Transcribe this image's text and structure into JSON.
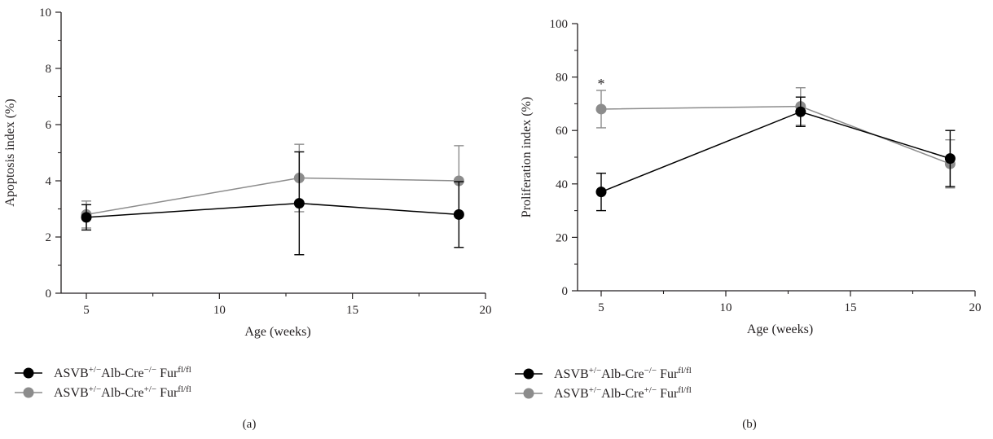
{
  "chart_data": [
    {
      "type": "line",
      "panel_label": "(a)",
      "xlabel": "Age (weeks)",
      "ylabel": "Apoptosis index (%)",
      "xlim": [
        4,
        20
      ],
      "ylim": [
        0,
        10
      ],
      "xticks": [
        5,
        10,
        15,
        20
      ],
      "yticks": [
        0,
        2,
        4,
        6,
        8,
        10
      ],
      "grid": false,
      "legend_position": "bottom-left",
      "series": [
        {
          "legend": {
            "base": "ASVB",
            "sup1": "+/−",
            "mid": "Alb-Cre",
            "sup2": "−/−",
            "fur": "Fur",
            "sup3": "fl/fl"
          },
          "color": "#000000",
          "x": [
            5,
            13,
            19
          ],
          "y": [
            2.7,
            3.2,
            2.8
          ],
          "err": [
            0.45,
            1.83,
            1.17
          ]
        },
        {
          "legend": {
            "base": "ASVB",
            "sup1": "+/−",
            "mid": "Alb-Cre",
            "sup2": "+/−",
            "fur": "Fur",
            "sup3": "fl/fl"
          },
          "color": "#8c8c8c",
          "x": [
            5,
            13,
            19
          ],
          "y": [
            2.8,
            4.1,
            4.0
          ],
          "err": [
            0.48,
            1.2,
            1.25
          ]
        }
      ],
      "annotations": []
    },
    {
      "type": "line",
      "panel_label": "(b)",
      "xlabel": "Age (weeks)",
      "ylabel": "Proliferation index (%)",
      "xlim": [
        4,
        20
      ],
      "ylim": [
        0,
        100
      ],
      "xticks": [
        5,
        10,
        15,
        20
      ],
      "yticks": [
        0,
        20,
        40,
        60,
        80,
        100
      ],
      "grid": false,
      "legend_position": "bottom-left",
      "series": [
        {
          "legend": {
            "base": "ASVB",
            "sup1": "+/−",
            "mid": "Alb-Cre",
            "sup2": "−/−",
            "fur": "Fur",
            "sup3": "fl/fl"
          },
          "color": "#000000",
          "x": [
            5,
            13,
            19
          ],
          "y": [
            37,
            67,
            49.5
          ],
          "err": [
            7,
            5.5,
            10.5
          ]
        },
        {
          "legend": {
            "base": "ASVB",
            "sup1": "+/−",
            "mid": "Alb-Cre",
            "sup2": "+/−",
            "fur": "Fur",
            "sup3": "fl/fl"
          },
          "color": "#8c8c8c",
          "x": [
            5,
            13,
            19
          ],
          "y": [
            68,
            69,
            47.5
          ],
          "err": [
            7,
            7,
            9
          ]
        }
      ],
      "annotations": [
        {
          "text": "*",
          "x": 5
        }
      ]
    }
  ]
}
